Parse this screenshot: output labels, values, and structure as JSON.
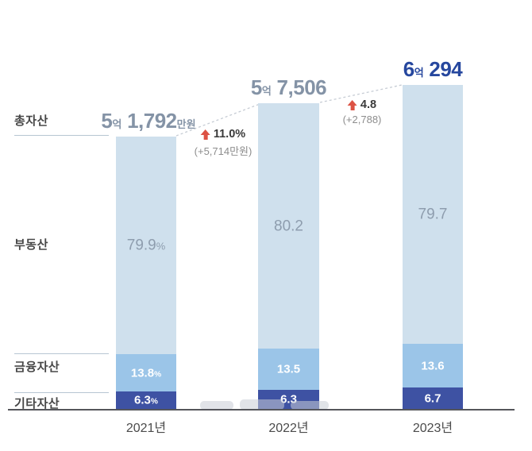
{
  "colors": {
    "bar_light": "#cfe0ed",
    "bar_mid": "#9bc5e8",
    "bar_dark": "#3e52a3",
    "total_gray": "#8493a6",
    "total_navy": "#26479e",
    "label_dark": "#474747",
    "pct_gray": "#8e9dae",
    "pct_white": "#ffffff",
    "arrow_red": "#dc5244",
    "ann_text": "#3a3a3a",
    "ann_sub": "#8d8d8d",
    "guide_line": "#b7c6d2",
    "dash_line": "#c6ccd4",
    "axis_line": "#55565b",
    "year_text": "#4b4b4b"
  },
  "row_labels": {
    "total": "총자산",
    "real_estate": "부동산",
    "financial": "금융자산",
    "other": "기타자산"
  },
  "chart_data": {
    "type": "bar",
    "stacked": true,
    "unit": "%",
    "grid": false,
    "legend_position": "left-row-labels",
    "categories": [
      "2021년",
      "2022년",
      "2023년"
    ],
    "totals": [
      "5억 1,792만원",
      "5억 7,506",
      "6억 294"
    ],
    "total_values_manwon": [
      51792,
      57506,
      60294
    ],
    "total_label_parts": [
      [
        {
          "text": "5",
          "em": true
        },
        {
          "text": "억",
          "em": false
        },
        {
          "text": " 1,792",
          "em": true
        },
        {
          "text": "만원",
          "em": false
        }
      ],
      [
        {
          "text": "5",
          "em": true
        },
        {
          "text": "억",
          "em": false
        },
        {
          "text": " 7,506",
          "em": true
        }
      ],
      [
        {
          "text": "6",
          "em": true
        },
        {
          "text": "억",
          "em": false
        },
        {
          "text": " 294",
          "em": true
        }
      ]
    ],
    "total_color_styles": [
      "gray",
      "gray",
      "navy"
    ],
    "series": [
      {
        "name": "부동산",
        "key": "real-estate",
        "values": [
          79.9,
          80.2,
          79.7
        ],
        "display_labels": [
          "79.9%",
          "80.2",
          "79.7"
        ],
        "text_style": "light"
      },
      {
        "name": "금융자산",
        "key": "financial-assets",
        "values": [
          13.8,
          13.5,
          13.6
        ],
        "display_labels": [
          "13.8%",
          "13.5",
          "13.6"
        ],
        "text_style": "white"
      },
      {
        "name": "기타자산",
        "key": "other-assets",
        "values": [
          6.3,
          6.3,
          6.7
        ],
        "display_labels": [
          "6.3%",
          "6.3",
          "6.7"
        ],
        "text_style": "white"
      }
    ],
    "annotations": [
      {
        "from": "2021년",
        "to": "2022년",
        "change": "11.0%",
        "delta": "(+5,714만원)"
      },
      {
        "from": "2022년",
        "to": "2023년",
        "change": "4.8",
        "delta": "(+2,788)"
      }
    ]
  }
}
